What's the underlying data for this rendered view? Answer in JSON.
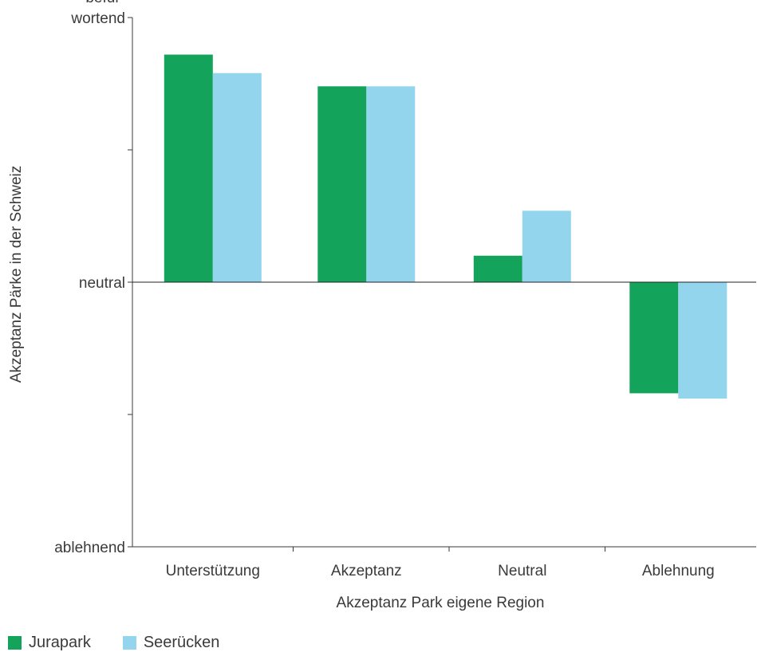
{
  "chart_data": {
    "type": "bar",
    "categories": [
      "Unterstützung",
      "Akzeptanz",
      "Neutral",
      "Ablehnung"
    ],
    "series": [
      {
        "name": "Jurapark",
        "color": "#14a35a",
        "values": [
          0.86,
          0.74,
          0.1,
          -0.42
        ]
      },
      {
        "name": "Seerücken",
        "color": "#94d5ee",
        "values": [
          0.79,
          0.74,
          0.27,
          -0.44
        ]
      }
    ],
    "ylim": [
      -1,
      1
    ],
    "yticks": [
      {
        "value": 1,
        "label": [
          "befür-",
          "wortend"
        ]
      },
      {
        "value": 0.5,
        "label": []
      },
      {
        "value": 0,
        "label": [
          "neutral"
        ]
      },
      {
        "value": -0.5,
        "label": []
      },
      {
        "value": -1,
        "label": [
          "ablehnend"
        ]
      }
    ],
    "xlabel": "Akzeptanz Park eigene Region",
    "ylabel": "Akzeptanz Pärke in der Schweiz",
    "grid": false,
    "legend_position": "bottom-left"
  }
}
